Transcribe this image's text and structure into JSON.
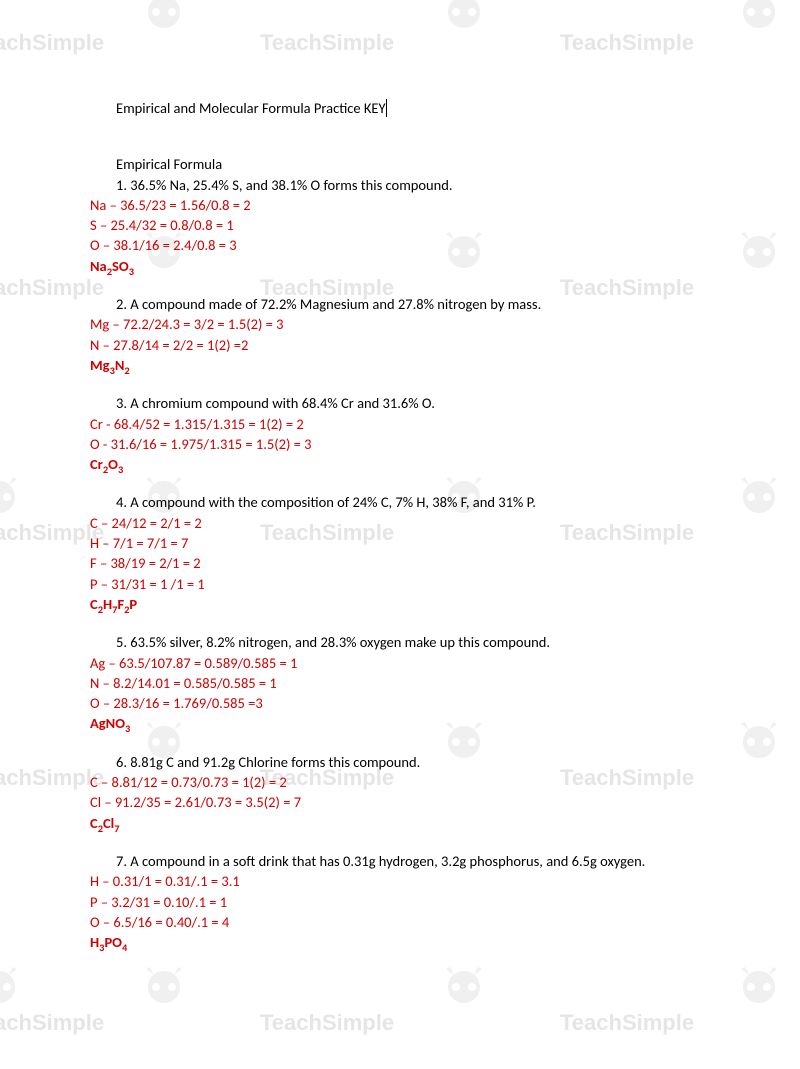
{
  "watermark_text": "TeachSimple",
  "colors": {
    "text": "#000000",
    "answer": "#d00000",
    "watermark": "#e5e5e5",
    "background": "#ffffff"
  },
  "title": "Empirical and Molecular Formula Practice KEY",
  "section1": {
    "heading": "Empirical Formula",
    "problems": [
      {
        "num": "1.",
        "prompt": "36.5% Na, 25.4% S, and 38.1% O forms this compound.",
        "work": [
          "Na – 36.5/23 = 1.56/0.8 = 2",
          "S – 25.4/32 = 0.8/0.8 = 1",
          "O – 38.1/16 = 2.4/0.8 = 3"
        ],
        "answer_parts": [
          "Na",
          "2",
          "SO",
          "3"
        ]
      },
      {
        "num": "2.",
        "prompt": "A compound made of 72.2% Magnesium and 27.8% nitrogen by mass.",
        "work": [
          "Mg – 72.2/24.3 = 3/2 = 1.5(2) = 3",
          "N – 27.8/14 = 2/2 = 1(2) =2"
        ],
        "answer_parts": [
          "Mg",
          "3",
          "N",
          "2"
        ]
      },
      {
        "num": "3.",
        "prompt": "A chromium compound with 68.4% Cr and 31.6% O.",
        "work": [
          "Cr - 68.4/52 = 1.315/1.315 = 1(2) = 2",
          "O - 31.6/16 = 1.975/1.315 = 1.5(2) = 3"
        ],
        "answer_parts": [
          "Cr",
          "2",
          "O",
          "3"
        ]
      },
      {
        "num": "4.",
        "prompt": "A compound with the composition of 24% C, 7% H, 38% F, and 31% P.",
        "work": [
          "C – 24/12 = 2/1 = 2",
          "H – 7/1 = 7/1 = 7",
          "F – 38/19 = 2/1 = 2",
          "P – 31/31 = 1 /1 = 1"
        ],
        "answer_parts": [
          "C",
          "2",
          "H",
          "7",
          "F",
          "2",
          "P",
          ""
        ]
      },
      {
        "num": "5.",
        "prompt": "63.5% silver, 8.2% nitrogen, and 28.3% oxygen make up this compound.",
        "work": [
          "Ag – 63.5/107.87 = 0.589/0.585 = 1",
          "N – 8.2/14.01 = 0.585/0.585 = 1",
          "O – 28.3/16 = 1.769/0.585 =3"
        ],
        "answer_parts": [
          "AgNO",
          "3",
          "",
          ""
        ]
      },
      {
        "num": "6.",
        "prompt": "8.81g C and 91.2g Chlorine forms this compound.",
        "work": [
          "C – 8.81/12 = 0.73/0.73 = 1(2) = 2",
          "Cl – 91.2/35 = 2.61/0.73 = 3.5(2) = 7"
        ],
        "answer_parts": [
          "C",
          "2",
          "Cl",
          "7"
        ]
      },
      {
        "num": "7.",
        "prompt": "A compound in a soft drink that has 0.31g hydrogen, 3.2g phosphorus, and 6.5g oxygen.",
        "work": [
          "H – 0.31/1 = 0.31/.1 = 3.1",
          "P – 3.2/31 = 0.10/.1 = 1",
          "O – 6.5/16 = 0.40/.1 = 4"
        ],
        "answer_parts": [
          "H",
          "3",
          "PO",
          "4"
        ]
      }
    ]
  }
}
